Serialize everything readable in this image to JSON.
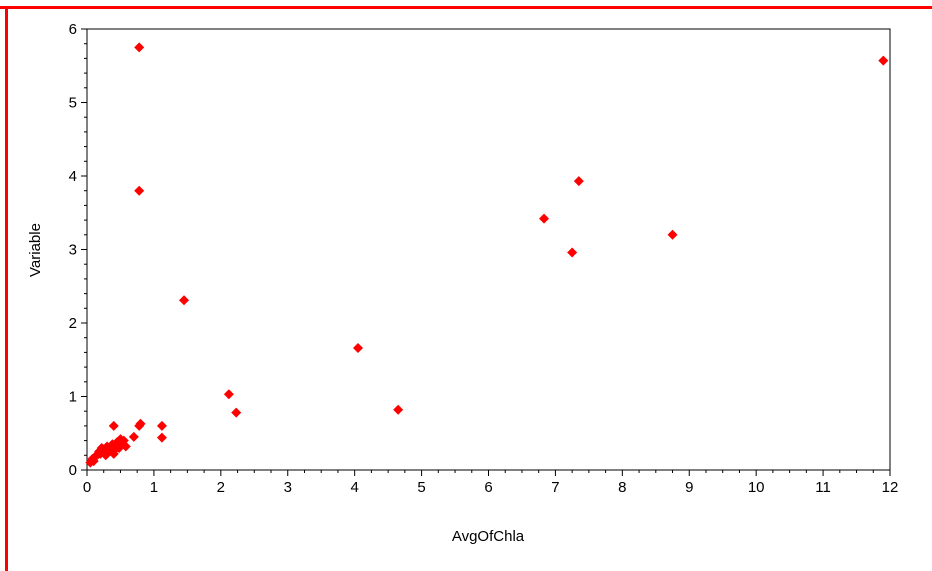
{
  "colors": {
    "frame": "#ff0000",
    "marker": "#ff0000",
    "axis": "#000000",
    "background": "#ffffff"
  },
  "chart_data": {
    "type": "scatter",
    "title": "",
    "xlabel": "AvgOfChla",
    "ylabel": "Variable",
    "xlim": [
      0,
      12
    ],
    "ylim": [
      0,
      6
    ],
    "grid": false,
    "marker": "diamond",
    "x_ticks": [
      0,
      1,
      2,
      3,
      4,
      5,
      6,
      7,
      8,
      9,
      10,
      11,
      12
    ],
    "y_ticks": [
      0,
      1,
      2,
      3,
      4,
      5,
      6
    ],
    "x_tick_labels": [
      "0",
      "1",
      "2",
      "3",
      "4",
      "5",
      "6",
      "7",
      "8",
      "9",
      "10",
      "11",
      "12"
    ],
    "y_tick_labels": [
      "0",
      "1",
      "2",
      "3",
      "4",
      "5",
      "6"
    ],
    "series": [
      {
        "points": [
          [
            0.05,
            0.1
          ],
          [
            0.08,
            0.15
          ],
          [
            0.1,
            0.12
          ],
          [
            0.12,
            0.18
          ],
          [
            0.15,
            0.2
          ],
          [
            0.18,
            0.25
          ],
          [
            0.2,
            0.22
          ],
          [
            0.22,
            0.3
          ],
          [
            0.25,
            0.28
          ],
          [
            0.28,
            0.2
          ],
          [
            0.3,
            0.32
          ],
          [
            0.32,
            0.25
          ],
          [
            0.35,
            0.3
          ],
          [
            0.38,
            0.35
          ],
          [
            0.4,
            0.22
          ],
          [
            0.42,
            0.28
          ],
          [
            0.45,
            0.38
          ],
          [
            0.48,
            0.3
          ],
          [
            0.5,
            0.42
          ],
          [
            0.52,
            0.35
          ],
          [
            0.55,
            0.4
          ],
          [
            0.58,
            0.32
          ],
          [
            0.4,
            0.6
          ],
          [
            0.7,
            0.45
          ],
          [
            0.78,
            0.6
          ],
          [
            0.8,
            0.63
          ],
          [
            0.78,
            3.8
          ],
          [
            0.78,
            5.75
          ],
          [
            1.12,
            0.6
          ],
          [
            1.12,
            0.44
          ],
          [
            1.45,
            2.31
          ],
          [
            2.12,
            1.03
          ],
          [
            2.23,
            0.78
          ],
          [
            4.05,
            1.66
          ],
          [
            4.65,
            0.82
          ],
          [
            6.83,
            3.42
          ],
          [
            7.25,
            2.96
          ],
          [
            7.35,
            3.93
          ],
          [
            8.75,
            3.2
          ],
          [
            11.9,
            5.57
          ]
        ]
      }
    ]
  }
}
